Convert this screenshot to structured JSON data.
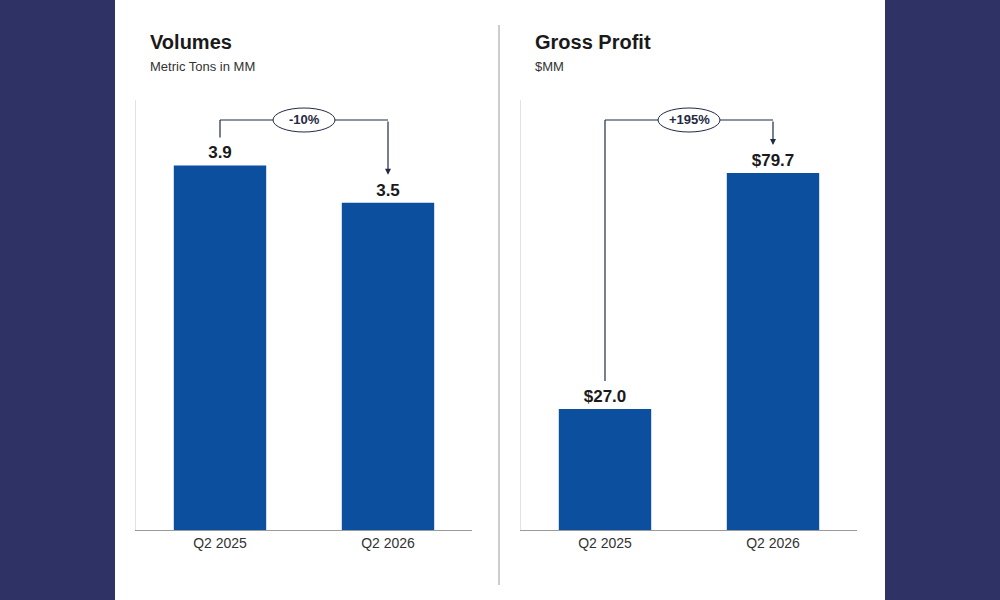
{
  "chart_data": [
    {
      "type": "bar",
      "title": "Volumes",
      "subtitle": "Metric Tons in MM",
      "categories": [
        "Q2 2025",
        "Q2 2026"
      ],
      "values": [
        3.9,
        3.5
      ],
      "color": "#0b4f9e",
      "ylim": [
        0,
        4.6
      ],
      "grid": false,
      "data_labels": true,
      "tick_labels": "x",
      "annotation": "-10%"
    },
    {
      "type": "bar",
      "title": "Gross Profit",
      "subtitle": "$MM",
      "categories": [
        "Q2 2025",
        "Q2 2026"
      ],
      "values": [
        27.0,
        79.7
      ],
      "value_labels": [
        "$27.0",
        "$79.7"
      ],
      "color": "#0b4f9e",
      "ylim": [
        0,
        96
      ],
      "grid": false,
      "data_labels": true,
      "tick_labels": "x",
      "annotation": "+195%"
    }
  ]
}
